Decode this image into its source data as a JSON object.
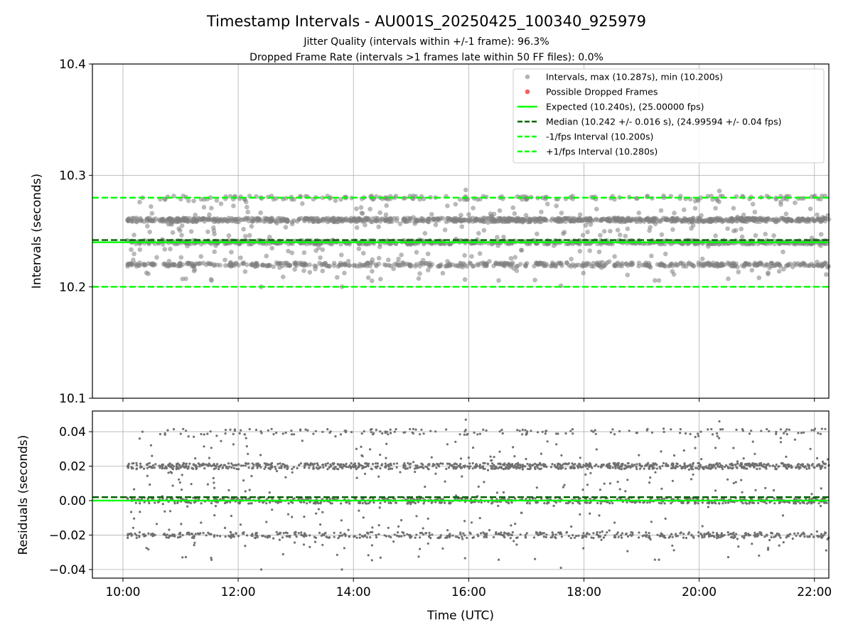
{
  "figure": {
    "title": "Timestamp Intervals - AU001S_20250425_100340_925979",
    "subtitle_1": "Jitter Quality (intervals within +/-1 frame): 96.3%",
    "subtitle_2": "Dropped Frame Rate (intervals >1 frames late within 50 FF files): 0.0%"
  },
  "chart_data": [
    {
      "type": "scatter",
      "panel": "top",
      "xlabel": "",
      "ylabel": "Intervals (seconds)",
      "ylim": [
        10.1,
        10.4
      ],
      "yticks": [
        10.1,
        10.2,
        10.3,
        10.4
      ],
      "ytick_labels": [
        "10.1",
        "10.2",
        "10.3",
        "10.4"
      ],
      "xlim_hours": [
        9.47,
        22.25
      ],
      "xticks_hours": [
        10,
        12,
        14,
        16,
        18,
        20,
        22
      ],
      "grid": true,
      "legend_position": "top-right",
      "point_color": "#808080",
      "data_time_range_hours": [
        10.06,
        22.25
      ],
      "interval_levels_seconds": [
        10.22,
        10.24,
        10.26,
        10.28
      ],
      "max_interval": 10.287,
      "min_interval": 10.2,
      "series": [
        {
          "name": "Intervals, max (10.287s), min (10.200s)",
          "kind": "scatter",
          "color": "#808080"
        },
        {
          "name": "Possible Dropped Frames",
          "kind": "scatter",
          "color": "#f05050",
          "values": []
        },
        {
          "name": "Expected (10.240s), (25.00000 fps)",
          "kind": "hline",
          "y": 10.24,
          "color": "#00ff00",
          "style": "solid"
        },
        {
          "name": "Median (10.242 +/- 0.016 s), (24.99594 +/- 0.04 fps)",
          "kind": "hline",
          "y": 10.242,
          "color": "#006400",
          "style": "dashed"
        },
        {
          "name": "-1/fps Interval (10.200s)",
          "kind": "hline",
          "y": 10.2,
          "color": "#00ff00",
          "style": "dashed"
        },
        {
          "name": "+1/fps Interval (10.280s)",
          "kind": "hline",
          "y": 10.28,
          "color": "#00ff00",
          "style": "dashed"
        }
      ]
    },
    {
      "type": "scatter",
      "panel": "bottom",
      "xlabel": "Time (UTC)",
      "ylabel": "Residuals (seconds)",
      "ylim": [
        -0.045,
        0.052
      ],
      "yticks": [
        -0.04,
        -0.02,
        0.0,
        0.02,
        0.04
      ],
      "ytick_labels": [
        "−0.04",
        "−0.02",
        "0.00",
        "0.02",
        "0.04"
      ],
      "xlim_hours": [
        9.47,
        22.25
      ],
      "xticks_hours": [
        10,
        12,
        14,
        16,
        18,
        20,
        22
      ],
      "xtick_labels": [
        "10:00",
        "12:00",
        "14:00",
        "16:00",
        "18:00",
        "20:00",
        "22:00"
      ],
      "grid": true,
      "point_color": "#707070",
      "residual_levels_seconds": [
        -0.02,
        0.0,
        0.02,
        0.04
      ],
      "series": [
        {
          "kind": "scatter",
          "color": "#707070"
        },
        {
          "kind": "hline",
          "y": 0.0,
          "color": "#00ff00",
          "style": "solid"
        },
        {
          "kind": "hline",
          "y": 0.002,
          "color": "#006400",
          "style": "dashed"
        }
      ]
    }
  ]
}
